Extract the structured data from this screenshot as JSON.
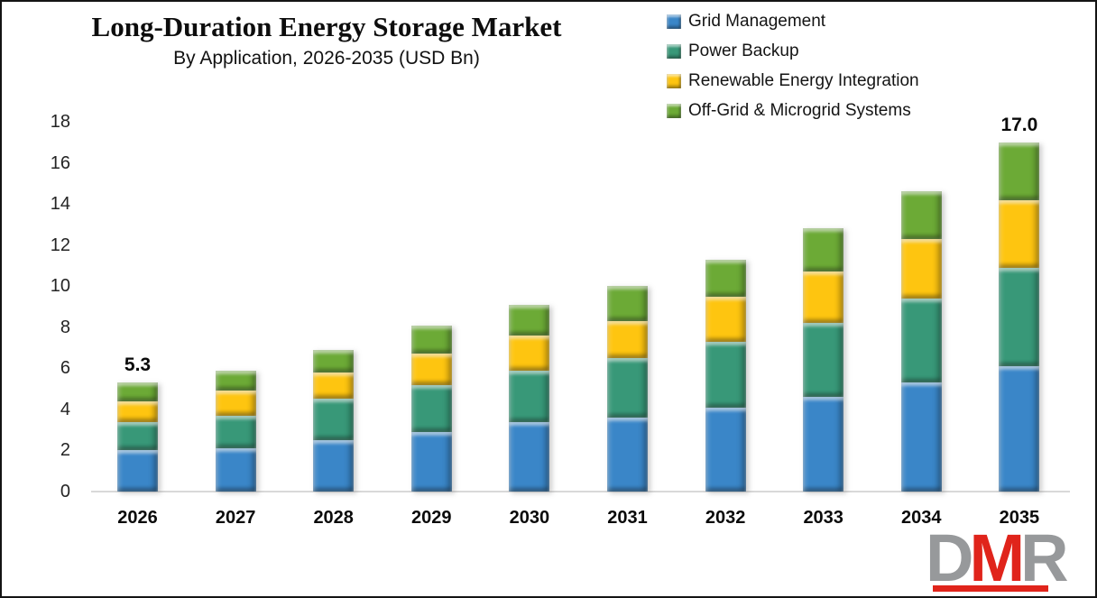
{
  "header": {
    "title": "Long-Duration Energy Storage Market",
    "subtitle": "By Application, 2026-2035 (USD Bn)"
  },
  "colors": {
    "grid_management": "#3a86c8",
    "power_backup": "#389878",
    "renewable_energy_integration": "#fec510",
    "offgrid_microgrid": "#6caa36",
    "axis_line": "#d9d9d9",
    "logo_gray": "#97999b",
    "logo_red": "#e0241b"
  },
  "chart_data": {
    "type": "bar",
    "stacked": true,
    "title": "Long-Duration Energy Storage Market",
    "subtitle": "By Application, 2026-2035 (USD Bn)",
    "xlabel": "",
    "ylabel": "",
    "ylim": [
      0,
      18
    ],
    "yticks": [
      0,
      2,
      4,
      6,
      8,
      10,
      12,
      14,
      16,
      18
    ],
    "grid": false,
    "legend_position": "top-right",
    "categories": [
      "2026",
      "2027",
      "2028",
      "2029",
      "2030",
      "2031",
      "2032",
      "2033",
      "2034",
      "2035"
    ],
    "series": [
      {
        "name": "Grid Management",
        "color": "#3a86c8",
        "values": [
          2.0,
          2.1,
          2.5,
          2.9,
          3.4,
          3.6,
          4.1,
          4.6,
          5.3,
          6.1
        ]
      },
      {
        "name": "Power Backup",
        "color": "#389878",
        "values": [
          1.4,
          1.6,
          2.0,
          2.3,
          2.5,
          2.9,
          3.2,
          3.6,
          4.1,
          4.8
        ]
      },
      {
        "name": "Renewable Energy Integration",
        "color": "#fec510",
        "values": [
          1.0,
          1.2,
          1.3,
          1.5,
          1.7,
          1.8,
          2.2,
          2.5,
          2.9,
          3.3
        ]
      },
      {
        "name": "Off-Grid & Microgrid Systems",
        "color": "#6caa36",
        "values": [
          0.9,
          1.0,
          1.1,
          1.4,
          1.5,
          1.7,
          1.8,
          2.1,
          2.3,
          2.8
        ]
      }
    ],
    "totals": [
      5.3,
      5.9,
      6.9,
      8.1,
      9.1,
      10.0,
      11.3,
      12.8,
      14.6,
      17.0
    ],
    "data_labels": [
      {
        "category": "2026",
        "text": "5.3"
      },
      {
        "category": "2035",
        "text": "17.0"
      }
    ]
  },
  "legend": [
    {
      "label": "Grid Management",
      "color": "#3a86c8"
    },
    {
      "label": "Power Backup",
      "color": "#389878"
    },
    {
      "label": "Renewable Energy Integration",
      "color": "#fec510"
    },
    {
      "label": "Off-Grid & Microgrid Systems",
      "color": "#6caa36"
    }
  ],
  "watermark": {
    "text": "DMR",
    "letters": [
      {
        "text": "D",
        "color": "#97999b"
      },
      {
        "text": "M",
        "color": "#e0241b"
      },
      {
        "text": "R",
        "color": "#97999b"
      }
    ]
  }
}
